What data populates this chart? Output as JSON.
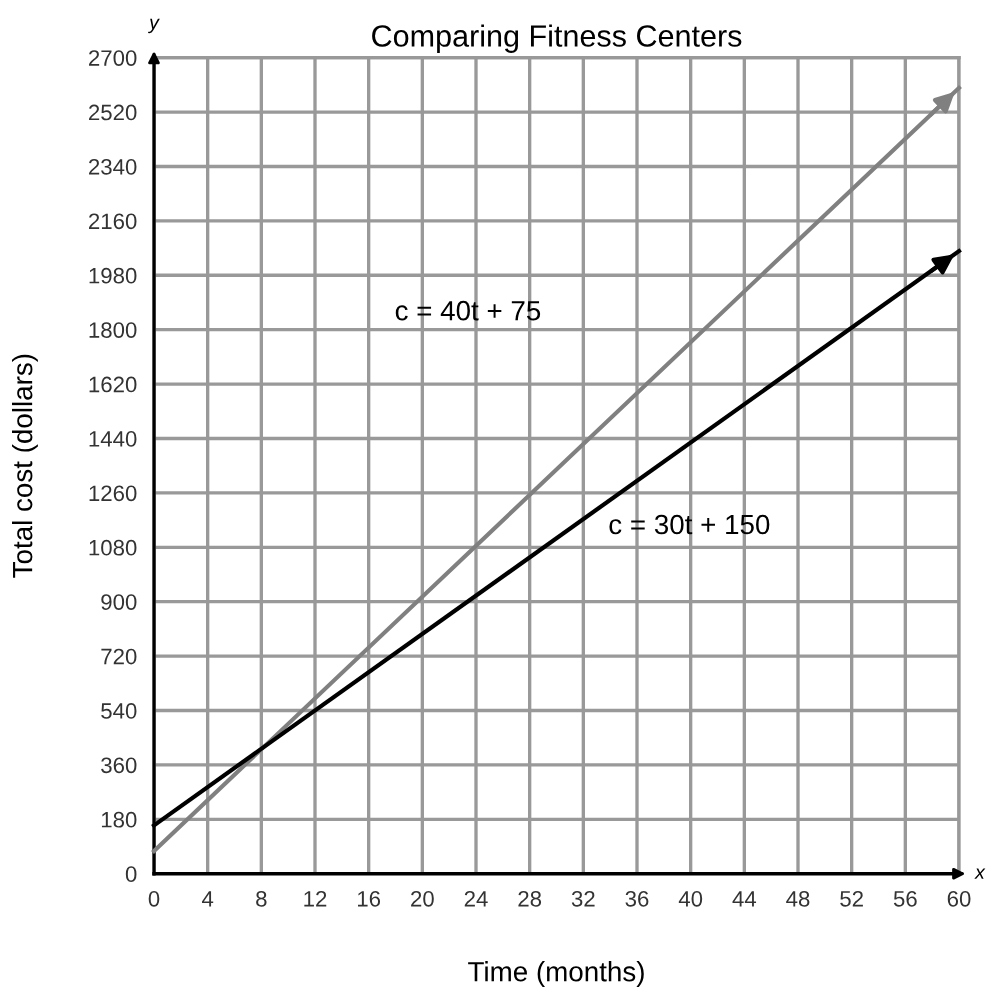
{
  "chart_data": {
    "type": "line",
    "title": "Comparing Fitness Centers",
    "xlabel": "Time (months)",
    "ylabel": "Total cost (dollars)",
    "x": [
      0,
      60
    ],
    "series": [
      {
        "color": "#808080",
        "values": [
          75,
          2600
        ]
      },
      {
        "color": "#000000",
        "values": [
          160,
          2060
        ]
      }
    ],
    "xlim": [
      0,
      60
    ],
    "xticks": [
      0,
      4,
      8,
      12,
      16,
      20,
      24,
      28,
      32,
      36,
      40,
      44,
      48,
      52,
      56,
      60
    ],
    "ylim": [
      0,
      2700
    ],
    "yticks": [
      0,
      180,
      360,
      540,
      720,
      900,
      1080,
      1260,
      1440,
      1620,
      1800,
      1980,
      2160,
      2340,
      2520,
      2700
    ],
    "grid": true,
    "marker": "none",
    "line_style": "solid",
    "annotations": [
      "y",
      "x",
      "c = 40t + 75",
      "c = 30t + 150"
    ]
  }
}
